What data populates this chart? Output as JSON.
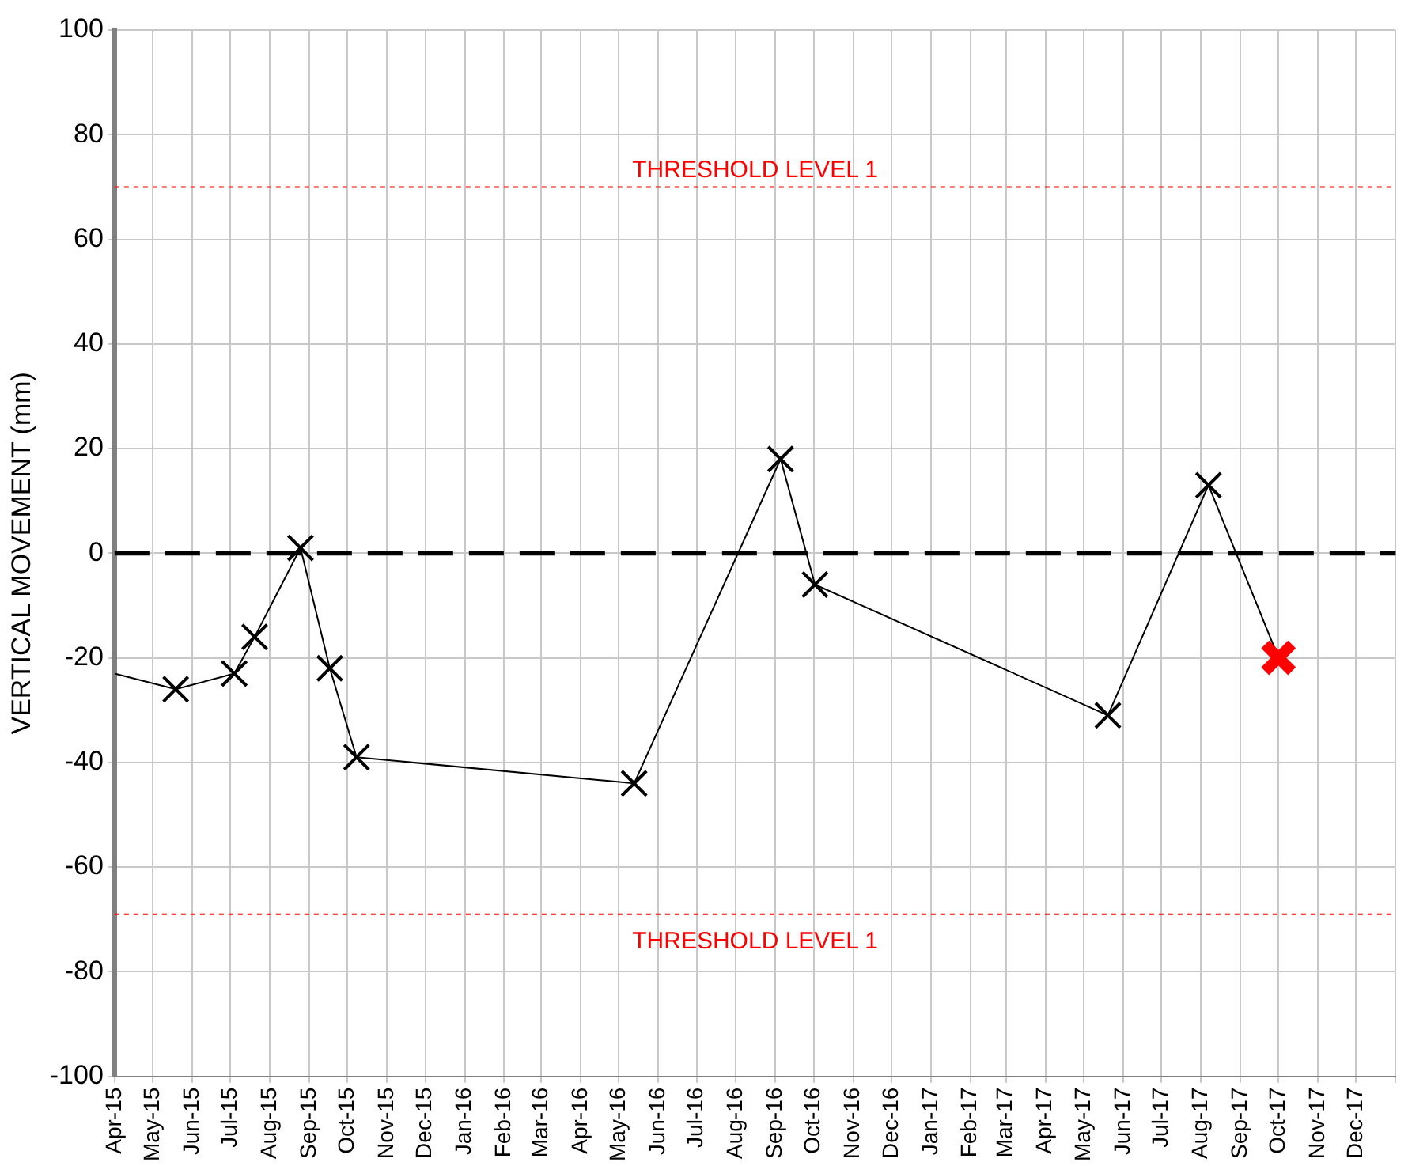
{
  "chart_data": {
    "type": "line",
    "ylabel": "VERTICAL MOVEMENT (mm)",
    "xlim": [
      "2015-04-01",
      "2018-01-01"
    ],
    "xticks": [
      {
        "value": "2015-04",
        "label": "Apr-15"
      },
      {
        "value": "2015-05",
        "label": "May-15"
      },
      {
        "value": "2015-06",
        "label": "Jun-15"
      },
      {
        "value": "2015-07",
        "label": "Jul-15"
      },
      {
        "value": "2015-08",
        "label": "Aug-15"
      },
      {
        "value": "2015-09",
        "label": "Sep-15"
      },
      {
        "value": "2015-10",
        "label": "Oct-15"
      },
      {
        "value": "2015-11",
        "label": "Nov-15"
      },
      {
        "value": "2015-12",
        "label": "Dec-15"
      },
      {
        "value": "2016-01",
        "label": "Jan-16"
      },
      {
        "value": "2016-02",
        "label": "Feb-16"
      },
      {
        "value": "2016-03",
        "label": "Mar-16"
      },
      {
        "value": "2016-04",
        "label": "Apr-16"
      },
      {
        "value": "2016-05",
        "label": "May-16"
      },
      {
        "value": "2016-06",
        "label": "Jun-16"
      },
      {
        "value": "2016-07",
        "label": "Jul-16"
      },
      {
        "value": "2016-08",
        "label": "Aug-16"
      },
      {
        "value": "2016-09",
        "label": "Sep-16"
      },
      {
        "value": "2016-10",
        "label": "Oct-16"
      },
      {
        "value": "2016-11",
        "label": "Nov-16"
      },
      {
        "value": "2016-12",
        "label": "Dec-16"
      },
      {
        "value": "2017-01",
        "label": "Jan-17"
      },
      {
        "value": "2017-02",
        "label": "Feb-17"
      },
      {
        "value": "2017-03",
        "label": "Mar-17"
      },
      {
        "value": "2017-04",
        "label": "Apr-17"
      },
      {
        "value": "2017-05",
        "label": "May-17"
      },
      {
        "value": "2017-06",
        "label": "Jun-17"
      },
      {
        "value": "2017-07",
        "label": "Jul-17"
      },
      {
        "value": "2017-08",
        "label": "Aug-17"
      },
      {
        "value": "2017-09",
        "label": "Sep-17"
      },
      {
        "value": "2017-10",
        "label": "Oct-17"
      },
      {
        "value": "2017-11",
        "label": "Nov-17"
      },
      {
        "value": "2017-12",
        "label": "Dec-17"
      },
      {
        "value": "2018-01",
        "label": null
      }
    ],
    "ylim": [
      -100,
      100
    ],
    "yticks": [
      -100,
      -80,
      -60,
      -40,
      -20,
      0,
      20,
      40,
      60,
      80,
      100
    ],
    "grid": true,
    "legend": false,
    "series": [
      {
        "color": "#000000",
        "x": [
          "2015-04-01",
          "2015-05-19"
        ],
        "values": [
          -23,
          -26
        ]
      },
      {
        "color": "#000000",
        "marker": "cross",
        "x": [
          "2015-05-19",
          "2015-07-04",
          "2015-07-20",
          "2015-08-25",
          "2015-09-17",
          "2015-10-08",
          "2016-05-13",
          "2016-09-05",
          "2016-10-02",
          "2017-05-20",
          "2017-08-07",
          "2017-10-01"
        ],
        "values": [
          -26,
          -23,
          -16,
          1,
          -22,
          -39,
          -44,
          18,
          -6,
          -31,
          13,
          -20
        ],
        "colors": [
          "#000000",
          "#000000",
          "#000000",
          "#000000",
          "#000000",
          "#000000",
          "#000000",
          "#000000",
          "#000000",
          "#000000",
          "#000000",
          "#ff0000"
        ]
      }
    ],
    "ref_lines": [
      {
        "axis": "y",
        "value": 70,
        "label": "THRESHOLD LEVEL 1",
        "color": "#ff0000",
        "line_style": "dotted"
      },
      {
        "axis": "y",
        "value": 0,
        "label": null,
        "color": "#000000",
        "line_style": "dashed"
      },
      {
        "axis": "y",
        "value": -69,
        "label": "THRESHOLD LEVEL 1",
        "color": "#ff0000",
        "line_style": "dotted"
      }
    ]
  }
}
